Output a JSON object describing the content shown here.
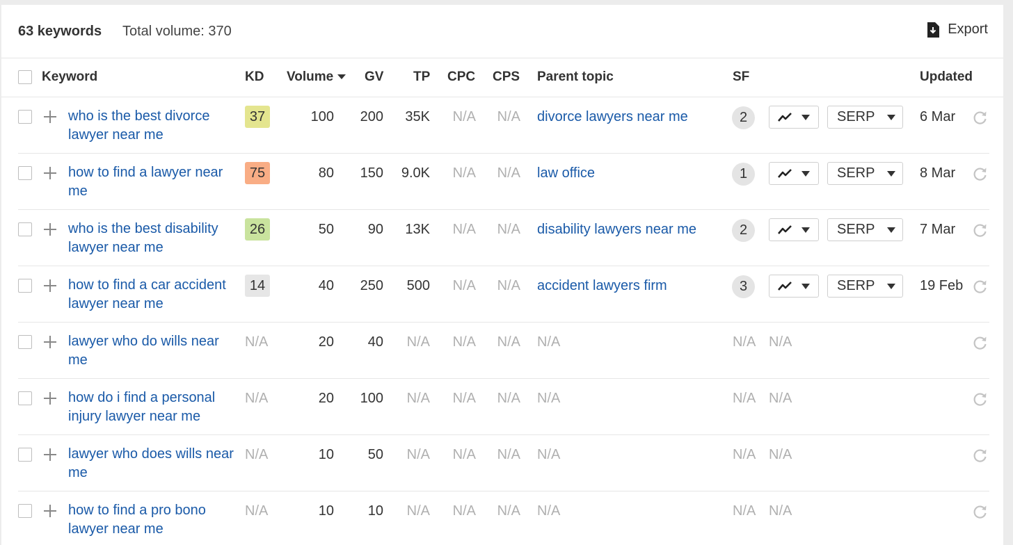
{
  "summary": {
    "keyword_count": "63 keywords",
    "total_volume": "Total volume: 370",
    "export_label": "Export"
  },
  "columns": {
    "keyword": "Keyword",
    "kd": "KD",
    "volume": "Volume",
    "gv": "GV",
    "tp": "TP",
    "cpc": "CPC",
    "cps": "CPS",
    "parent_topic": "Parent topic",
    "sf": "SF",
    "updated": "Updated"
  },
  "colors": {
    "link": "#1a5aa8",
    "na": "#b0b0b0",
    "kd_37": "#e4e58f",
    "kd_75": "#f9ad85",
    "kd_26": "#c9e39e",
    "kd_14": "#e6e6e6"
  },
  "rows": [
    {
      "keyword": "who is the best divorce lawyer near me",
      "kd": "37",
      "kd_color": "#e4e58f",
      "volume": "100",
      "gv": "200",
      "tp": "35K",
      "cpc": "N/A",
      "cps": "N/A",
      "parent_topic": "divorce lawyers near me",
      "sf": "2",
      "serp": "SERP",
      "updated": "6 Mar"
    },
    {
      "keyword": "how to find a lawyer near me",
      "kd": "75",
      "kd_color": "#f9ad85",
      "volume": "80",
      "gv": "150",
      "tp": "9.0K",
      "cpc": "N/A",
      "cps": "N/A",
      "parent_topic": "law office",
      "sf": "1",
      "serp": "SERP",
      "updated": "8 Mar"
    },
    {
      "keyword": "who is the best disability lawyer near me",
      "kd": "26",
      "kd_color": "#c9e39e",
      "volume": "50",
      "gv": "90",
      "tp": "13K",
      "cpc": "N/A",
      "cps": "N/A",
      "parent_topic": "disability lawyers near me",
      "sf": "2",
      "serp": "SERP",
      "updated": "7 Mar"
    },
    {
      "keyword": "how to find a car accident lawyer near me",
      "kd": "14",
      "kd_color": "#e6e6e6",
      "volume": "40",
      "gv": "250",
      "tp": "500",
      "cpc": "N/A",
      "cps": "N/A",
      "parent_topic": "accident lawyers firm",
      "sf": "3",
      "serp": "SERP",
      "updated": "19 Feb"
    },
    {
      "keyword": "lawyer who do wills near me",
      "kd": "N/A",
      "volume": "20",
      "gv": "40",
      "tp": "N/A",
      "cpc": "N/A",
      "cps": "N/A",
      "parent_topic": "N/A",
      "sf": "N/A",
      "trend": "N/A"
    },
    {
      "keyword": "how do i find a personal injury lawyer near me",
      "kd": "N/A",
      "volume": "20",
      "gv": "100",
      "tp": "N/A",
      "cpc": "N/A",
      "cps": "N/A",
      "parent_topic": "N/A",
      "sf": "N/A",
      "trend": "N/A"
    },
    {
      "keyword": "lawyer who does wills near me",
      "kd": "N/A",
      "volume": "10",
      "gv": "50",
      "tp": "N/A",
      "cpc": "N/A",
      "cps": "N/A",
      "parent_topic": "N/A",
      "sf": "N/A",
      "trend": "N/A"
    },
    {
      "keyword": "how to find a pro bono lawyer near me",
      "kd": "N/A",
      "volume": "10",
      "gv": "10",
      "tp": "N/A",
      "cpc": "N/A",
      "cps": "N/A",
      "parent_topic": "N/A",
      "sf": "N/A",
      "trend": "N/A"
    }
  ]
}
